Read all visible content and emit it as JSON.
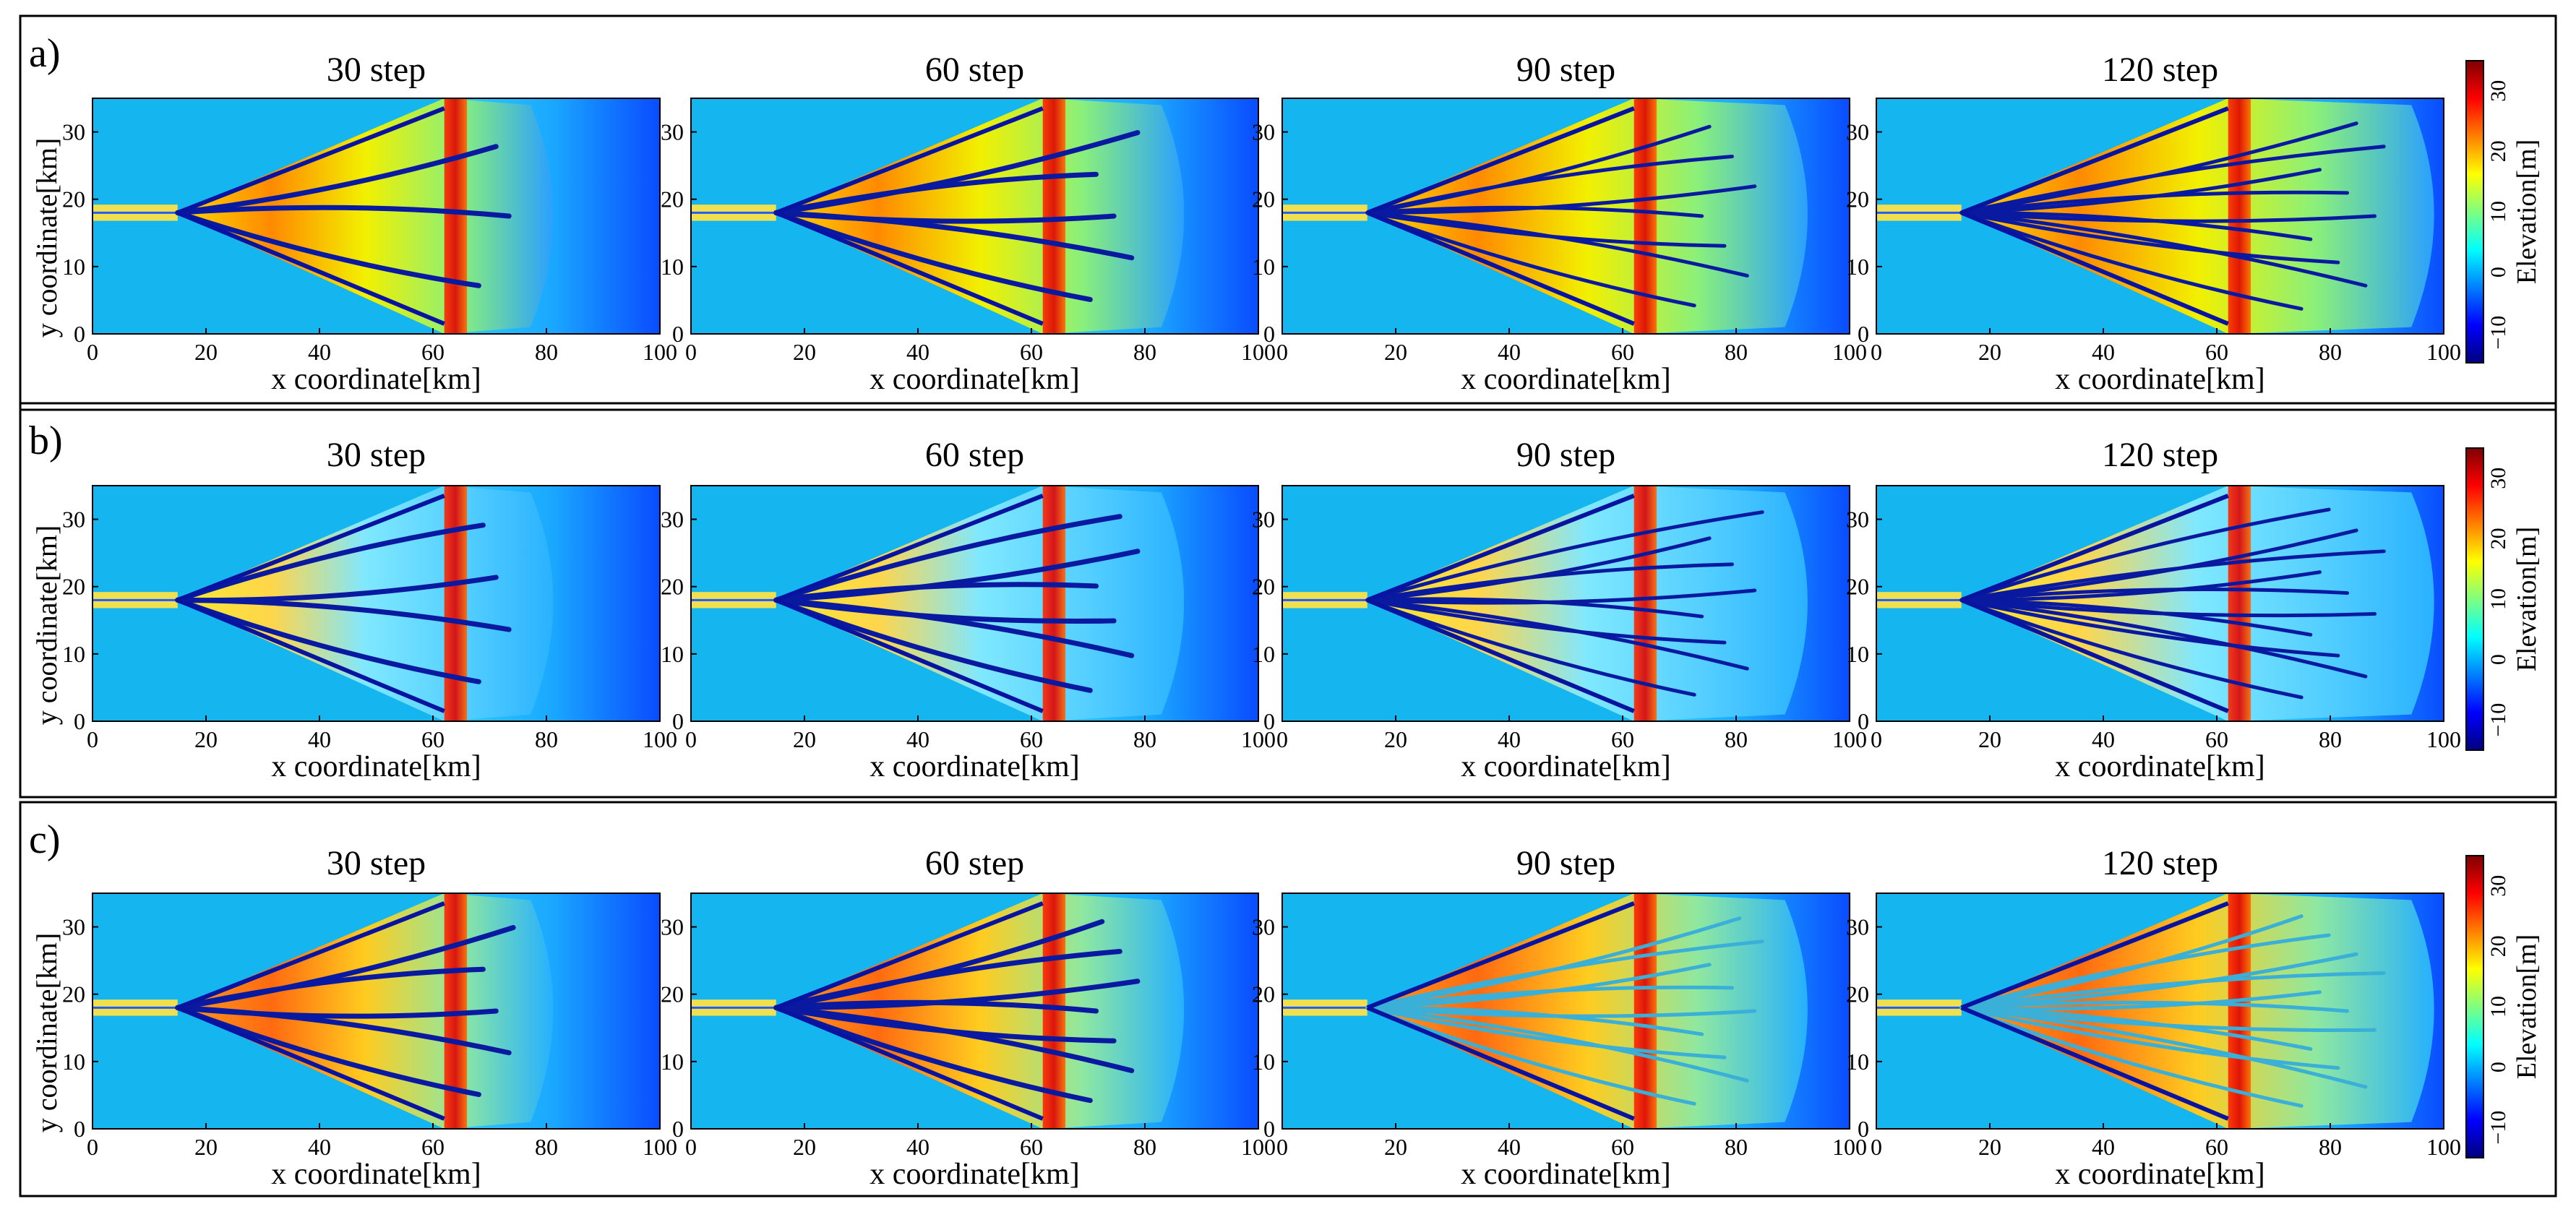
{
  "figure": {
    "common": {
      "x_label": "x coordinate[km]",
      "y_label": "y coordinate[km]",
      "x_ticks": [
        0,
        20,
        40,
        60,
        80,
        100
      ],
      "y_ticks": [
        0,
        10,
        20,
        30
      ],
      "colorbar_label": "Elevation[m]",
      "colorbar_ticks": [
        "30",
        "20",
        "10",
        "0",
        "−10"
      ]
    },
    "colormap_stops": [
      "#00007f",
      "#0000ff",
      "#007fff",
      "#00ffff",
      "#7fff7f",
      "#ffff00",
      "#ff7f00",
      "#ff0000",
      "#7f0000"
    ],
    "basin_color": "#15b5f0",
    "rows": [
      {
        "label": "a)",
        "panels": [
          "30 step",
          "60 step",
          "90 step",
          "120 step"
        ]
      },
      {
        "label": "b)",
        "panels": [
          "30 step",
          "60 step",
          "90 step",
          "120 step"
        ]
      },
      {
        "label": "c)",
        "panels": [
          "30 step",
          "60 step",
          "90 step",
          "120 step"
        ]
      }
    ]
  },
  "chart_data": {
    "type": "heatmap",
    "description_of_axes": "Delta elevation maps over a 100 km by 35 km domain",
    "xlim": [
      0,
      100
    ],
    "ylim": [
      0,
      35
    ],
    "colorbar_range": [
      -15,
      35
    ],
    "x_unit": "km",
    "y_unit": "km",
    "value_unit": "m",
    "rows": [
      "a)",
      "b)",
      "c)"
    ],
    "time_steps": [
      30,
      60,
      90,
      120
    ],
    "delta_apex_x_km": 15,
    "delta_apex_y_km": 18,
    "delta_front_x_km": [
      62,
      62,
      62,
      62
    ],
    "inlet_channel_y_km": 18
  }
}
